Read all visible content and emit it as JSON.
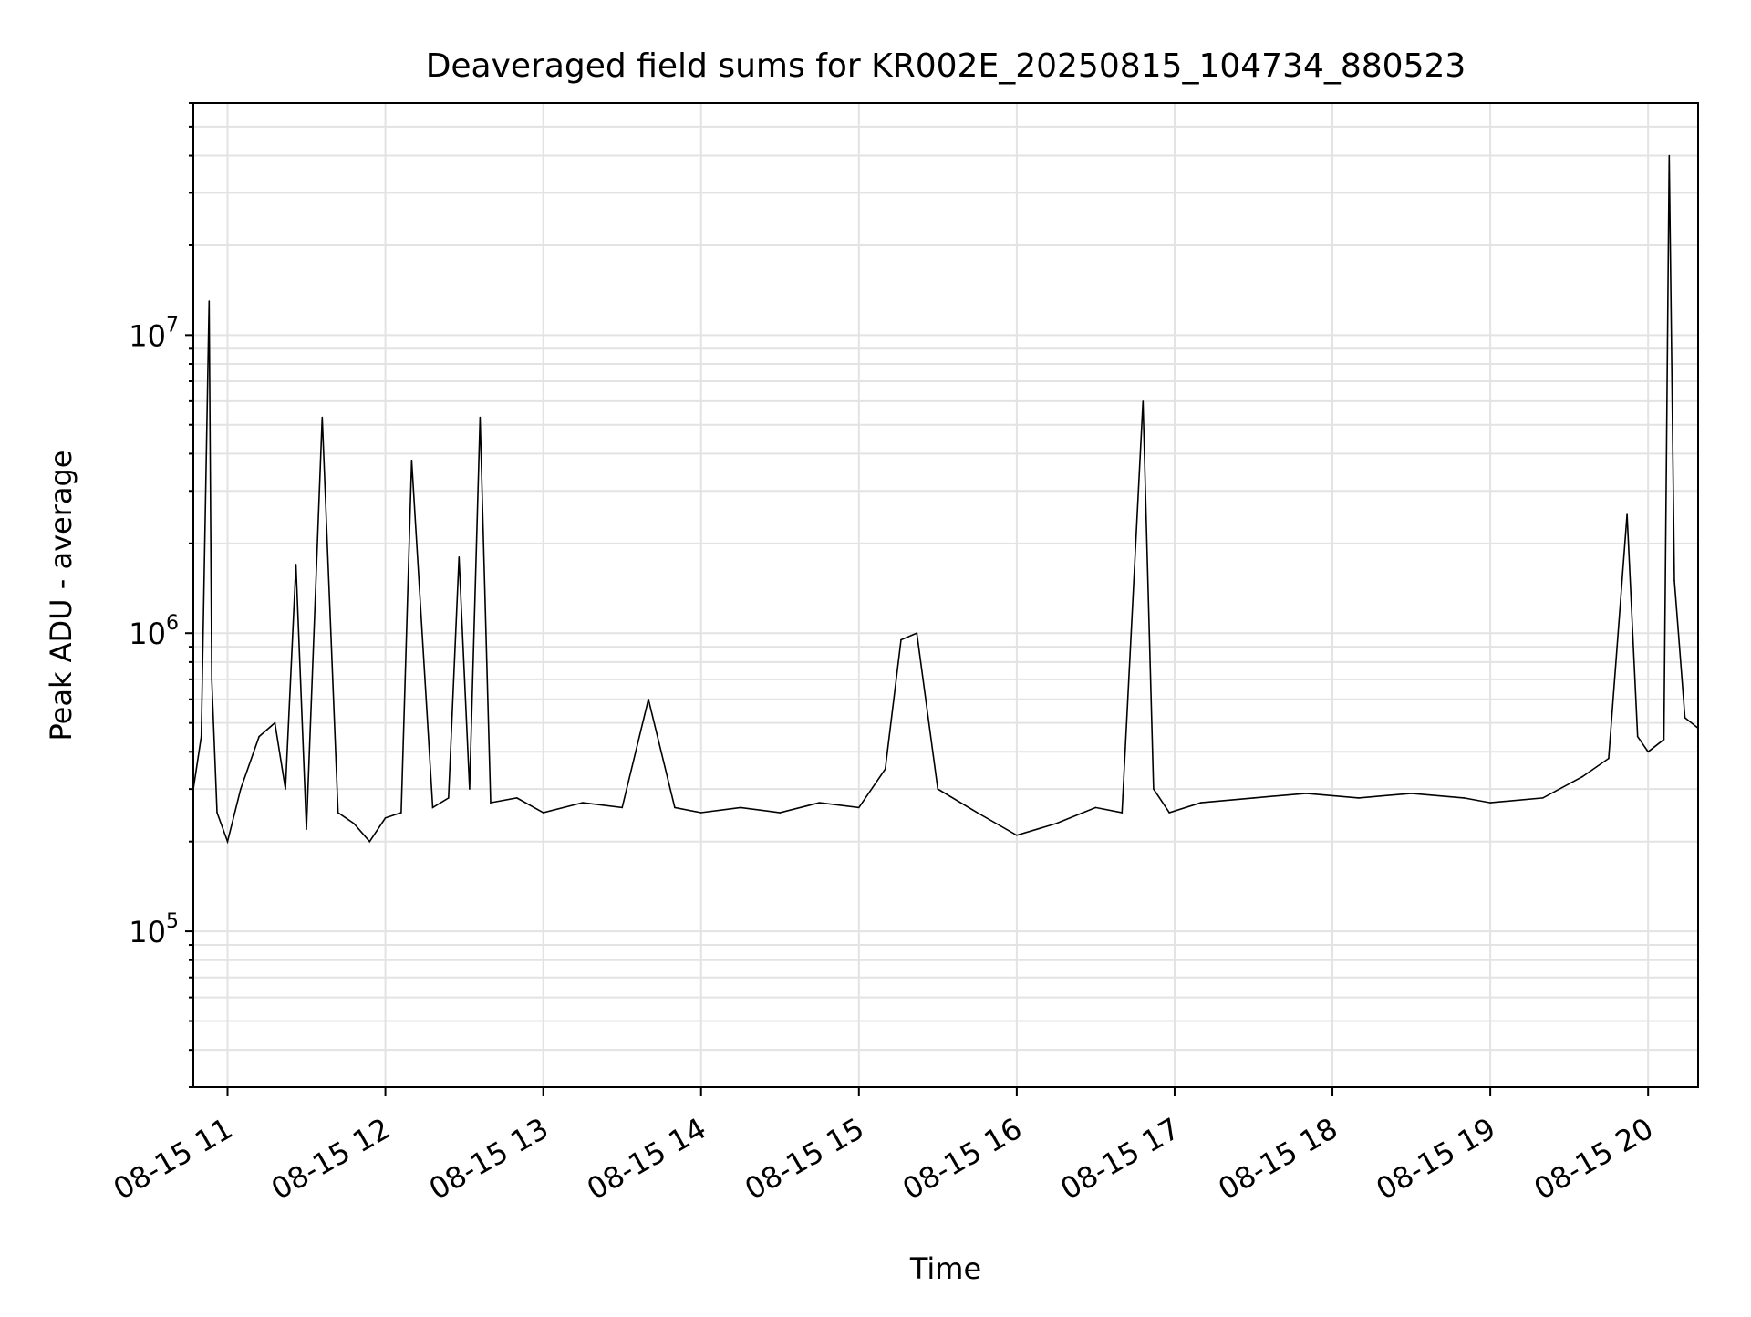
{
  "chart_data": {
    "type": "line",
    "title": "Deaveraged field sums for KR002E_20250815_104734_880523",
    "xlabel": "Time",
    "ylabel": "Peak ADU - average",
    "y_scale": "log",
    "xlim": [
      "2025-08-15 10:47",
      "2025-08-15 20:19"
    ],
    "ylim": [
      30000,
      60000000
    ],
    "grid": true,
    "legend": "none",
    "line_color": "#000000",
    "x_tick_labels": [
      "08-15 11",
      "08-15 12",
      "08-15 13",
      "08-15 14",
      "08-15 15",
      "08-15 16",
      "08-15 17",
      "08-15 18",
      "08-15 19",
      "08-15 20"
    ],
    "x_tick_values": [
      "2025-08-15 11:00",
      "2025-08-15 12:00",
      "2025-08-15 13:00",
      "2025-08-15 14:00",
      "2025-08-15 15:00",
      "2025-08-15 16:00",
      "2025-08-15 17:00",
      "2025-08-15 18:00",
      "2025-08-15 19:00",
      "2025-08-15 20:00"
    ],
    "y_ticks": [
      {
        "value": 100000,
        "base": "10",
        "exp": "5"
      },
      {
        "value": 1000000,
        "base": "10",
        "exp": "6"
      },
      {
        "value": 10000000,
        "base": "10",
        "exp": "7"
      }
    ],
    "series": [
      {
        "x": [
          "2025-08-15 10:47",
          "2025-08-15 10:50",
          "2025-08-15 10:53",
          "2025-08-15 10:54",
          "2025-08-15 10:56",
          "2025-08-15 11:00",
          "2025-08-15 11:05",
          "2025-08-15 11:12",
          "2025-08-15 11:18",
          "2025-08-15 11:22",
          "2025-08-15 11:26",
          "2025-08-15 11:30",
          "2025-08-15 11:36",
          "2025-08-15 11:42",
          "2025-08-15 11:48",
          "2025-08-15 11:54",
          "2025-08-15 12:00",
          "2025-08-15 12:06",
          "2025-08-15 12:10",
          "2025-08-15 12:18",
          "2025-08-15 12:24",
          "2025-08-15 12:28",
          "2025-08-15 12:32",
          "2025-08-15 12:36",
          "2025-08-15 12:40",
          "2025-08-15 12:50",
          "2025-08-15 13:00",
          "2025-08-15 13:15",
          "2025-08-15 13:30",
          "2025-08-15 13:40",
          "2025-08-15 13:50",
          "2025-08-15 14:00",
          "2025-08-15 14:15",
          "2025-08-15 14:30",
          "2025-08-15 14:45",
          "2025-08-15 15:00",
          "2025-08-15 15:10",
          "2025-08-15 15:16",
          "2025-08-15 15:22",
          "2025-08-15 15:30",
          "2025-08-15 15:45",
          "2025-08-15 16:00",
          "2025-08-15 16:15",
          "2025-08-15 16:30",
          "2025-08-15 16:40",
          "2025-08-15 16:48",
          "2025-08-15 16:52",
          "2025-08-15 16:58",
          "2025-08-15 17:10",
          "2025-08-15 17:30",
          "2025-08-15 17:50",
          "2025-08-15 18:10",
          "2025-08-15 18:30",
          "2025-08-15 18:50",
          "2025-08-15 19:00",
          "2025-08-15 19:20",
          "2025-08-15 19:35",
          "2025-08-15 19:45",
          "2025-08-15 19:52",
          "2025-08-15 19:56",
          "2025-08-15 20:00",
          "2025-08-15 20:06",
          "2025-08-15 20:08",
          "2025-08-15 20:10",
          "2025-08-15 20:14",
          "2025-08-15 20:19"
        ],
        "y": [
          300000,
          450000,
          13000000,
          700000,
          250000,
          200000,
          300000,
          450000,
          500000,
          300000,
          1700000,
          220000,
          5300000,
          250000,
          230000,
          200000,
          240000,
          250000,
          3800000,
          260000,
          280000,
          1800000,
          300000,
          5300000,
          270000,
          280000,
          250000,
          270000,
          260000,
          600000,
          260000,
          250000,
          260000,
          250000,
          270000,
          260000,
          350000,
          950000,
          1000000,
          300000,
          250000,
          210000,
          230000,
          260000,
          250000,
          6000000,
          300000,
          250000,
          270000,
          280000,
          290000,
          280000,
          290000,
          280000,
          270000,
          280000,
          330000,
          380000,
          2500000,
          450000,
          400000,
          440000,
          40000000,
          1500000,
          520000,
          480000
        ]
      }
    ]
  }
}
